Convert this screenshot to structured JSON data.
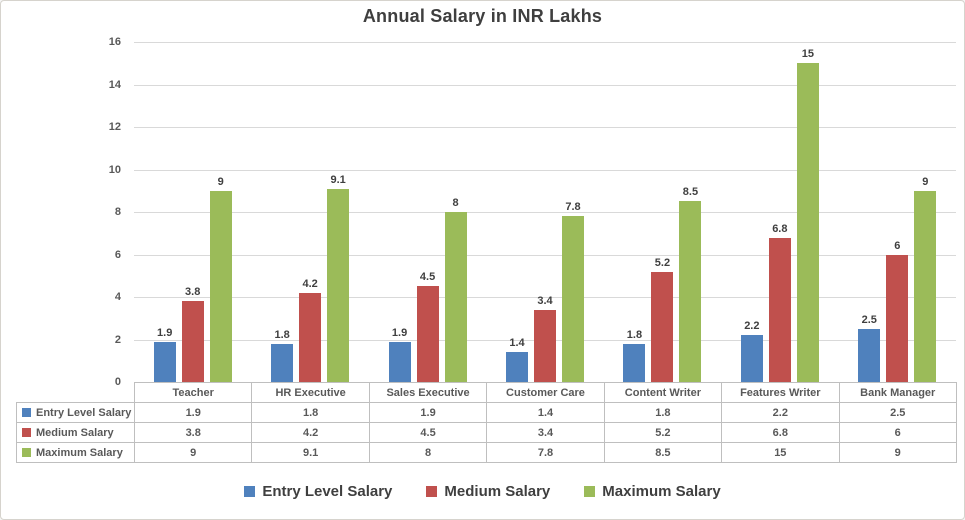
{
  "page": {
    "background_color": "#ffffff",
    "border_color": "#d6d3cd",
    "gridline_color": "#d9d9d9",
    "table_border_color": "#bfbfbf",
    "axis_text_color": "#595959",
    "title_text_color": "#3f3f3f"
  },
  "chart_data": {
    "type": "bar",
    "title": "Annual Salary in INR Lakhs",
    "categories": [
      "Teacher",
      "HR Executive",
      "Sales Executive",
      "Customer Care",
      "Content Writer",
      "Features Writer",
      "Bank Manager"
    ],
    "series": [
      {
        "name": "Entry Level Salary",
        "color": "#4F81BD",
        "values": [
          1.9,
          1.8,
          1.9,
          1.4,
          1.8,
          2.2,
          2.5
        ]
      },
      {
        "name": "Medium Salary",
        "color": "#C0504D",
        "values": [
          3.8,
          4.2,
          4.5,
          3.4,
          5.2,
          6.8,
          6
        ]
      },
      {
        "name": "Maximum Salary",
        "color": "#9BBB59",
        "values": [
          9,
          9.1,
          8,
          7.8,
          8.5,
          15,
          9
        ]
      }
    ],
    "xlabel": "",
    "ylabel": "",
    "ylim": [
      0,
      16
    ],
    "ytick_step": 2,
    "yticks": [
      0,
      2,
      4,
      6,
      8,
      10,
      12,
      14,
      16
    ],
    "grid": true,
    "data_labels": true,
    "data_table_shown": true,
    "legend_position": "bottom"
  }
}
